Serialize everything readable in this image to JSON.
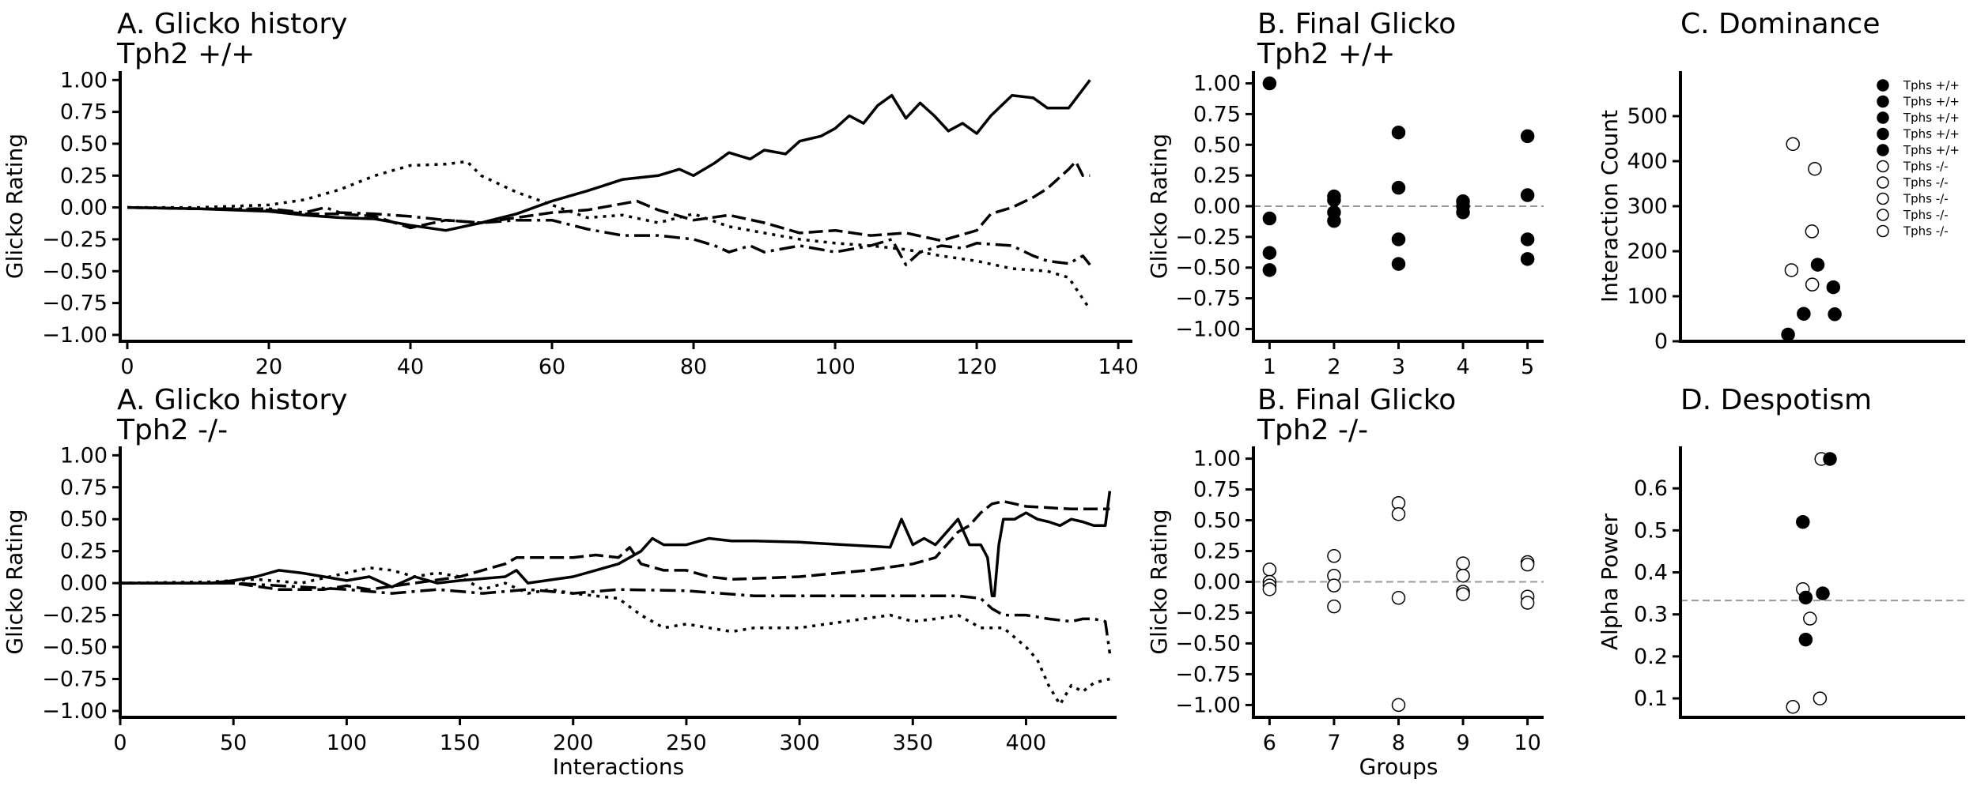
{
  "chart_data": [
    {
      "id": "A1",
      "type": "line",
      "title": "A. Glicko history",
      "subtitle": "Tph2 +/+",
      "xlabel": "",
      "ylabel": "Glicko Rating",
      "xlim": [
        -1,
        142
      ],
      "ylim": [
        -1.05,
        1.07
      ],
      "xticks": [
        0,
        20,
        40,
        60,
        80,
        100,
        120,
        140
      ],
      "yticks": [
        -1.0,
        -0.75,
        -0.5,
        -0.25,
        0.0,
        0.25,
        0.5,
        0.75,
        1.0
      ],
      "series": [
        {
          "style": "solid",
          "x": [
            0,
            10,
            20,
            25,
            30,
            35,
            40,
            45,
            50,
            55,
            60,
            65,
            70,
            75,
            78,
            80,
            83,
            85,
            88,
            90,
            93,
            95,
            98,
            100,
            102,
            104,
            106,
            108,
            110,
            112,
            114,
            116,
            118,
            120,
            122,
            125,
            128,
            130,
            133,
            136
          ],
          "y": [
            0,
            -0.01,
            -0.03,
            -0.06,
            -0.08,
            -0.09,
            -0.14,
            -0.18,
            -0.12,
            -0.05,
            0.05,
            0.13,
            0.22,
            0.25,
            0.3,
            0.25,
            0.35,
            0.43,
            0.38,
            0.45,
            0.42,
            0.52,
            0.56,
            0.62,
            0.72,
            0.66,
            0.8,
            0.88,
            0.7,
            0.82,
            0.72,
            0.6,
            0.66,
            0.58,
            0.72,
            0.88,
            0.86,
            0.78,
            0.78,
            1.0
          ]
        },
        {
          "style": "dashed",
          "x": [
            0,
            10,
            20,
            25,
            30,
            35,
            40,
            45,
            50,
            55,
            60,
            65,
            70,
            72,
            75,
            80,
            85,
            90,
            95,
            100,
            105,
            110,
            115,
            120,
            122,
            125,
            128,
            130,
            133,
            134,
            135,
            136
          ],
          "y": [
            0,
            -0.01,
            -0.02,
            -0.05,
            -0.05,
            -0.07,
            -0.16,
            -0.1,
            -0.12,
            -0.08,
            -0.04,
            -0.02,
            0.03,
            0.05,
            -0.02,
            -0.1,
            -0.06,
            -0.12,
            -0.2,
            -0.18,
            -0.22,
            -0.2,
            -0.26,
            -0.18,
            -0.05,
            0.0,
            0.08,
            0.15,
            0.3,
            0.36,
            0.25,
            0.25
          ]
        },
        {
          "style": "dotted",
          "x": [
            0,
            10,
            20,
            25,
            30,
            35,
            40,
            45,
            48,
            50,
            55,
            60,
            65,
            70,
            75,
            80,
            85,
            90,
            95,
            100,
            105,
            110,
            115,
            120,
            125,
            130,
            133,
            136
          ],
          "y": [
            0,
            0.0,
            0.02,
            0.06,
            0.14,
            0.25,
            0.33,
            0.34,
            0.36,
            0.25,
            0.12,
            0.02,
            -0.08,
            -0.06,
            -0.12,
            -0.05,
            -0.15,
            -0.2,
            -0.25,
            -0.28,
            -0.3,
            -0.33,
            -0.38,
            -0.42,
            -0.48,
            -0.5,
            -0.55,
            -0.8
          ]
        },
        {
          "style": "dashdot",
          "x": [
            0,
            10,
            20,
            25,
            28,
            30,
            35,
            40,
            45,
            50,
            55,
            60,
            65,
            70,
            75,
            80,
            83,
            85,
            88,
            90,
            95,
            100,
            105,
            108,
            110,
            112,
            115,
            118,
            120,
            125,
            128,
            130,
            133,
            135,
            136
          ],
          "y": [
            0,
            -0.01,
            -0.01,
            -0.04,
            0.0,
            -0.04,
            -0.05,
            -0.07,
            -0.1,
            -0.12,
            -0.1,
            -0.1,
            -0.17,
            -0.22,
            -0.22,
            -0.25,
            -0.3,
            -0.35,
            -0.3,
            -0.35,
            -0.3,
            -0.35,
            -0.3,
            -0.25,
            -0.45,
            -0.35,
            -0.3,
            -0.32,
            -0.28,
            -0.3,
            -0.38,
            -0.42,
            -0.44,
            -0.38,
            -0.45
          ]
        }
      ]
    },
    {
      "id": "B1",
      "type": "scatter",
      "title": "B. Final Glicko",
      "subtitle": "Tph2 +/+",
      "xlabel": "",
      "ylabel": "Glicko Rating",
      "xlim": [
        0.75,
        5.25
      ],
      "ylim": [
        -1.1,
        1.1
      ],
      "xticks": [
        1,
        2,
        3,
        4,
        5
      ],
      "yticks": [
        -1.0,
        -0.75,
        -0.5,
        -0.25,
        0.0,
        0.25,
        0.5,
        0.75,
        1.0
      ],
      "hline": 0.0,
      "fill": "#000000",
      "points": [
        [
          1,
          1.0
        ],
        [
          1,
          -0.1
        ],
        [
          1,
          -0.38
        ],
        [
          1,
          -0.52
        ],
        [
          2,
          0.08
        ],
        [
          2,
          0.05
        ],
        [
          2,
          -0.05
        ],
        [
          2,
          -0.12
        ],
        [
          3,
          0.6
        ],
        [
          3,
          0.15
        ],
        [
          3,
          -0.27
        ],
        [
          3,
          -0.47
        ],
        [
          4,
          0.04
        ],
        [
          4,
          0.0
        ],
        [
          4,
          -0.05
        ],
        [
          5,
          0.57
        ],
        [
          5,
          0.09
        ],
        [
          5,
          -0.27
        ],
        [
          5,
          -0.43
        ]
      ]
    },
    {
      "id": "C",
      "type": "scatter",
      "title": "C. Dominance",
      "xlabel": "",
      "ylabel": "Interaction Count",
      "xlim": [
        0,
        1
      ],
      "ylim": [
        0,
        600
      ],
      "yticks": [
        0,
        100,
        200,
        300,
        400,
        500
      ],
      "legend_position": "top-right",
      "legend": [
        {
          "label": "Tphs +/+",
          "filled": true
        },
        {
          "label": "Tphs +/+",
          "filled": true
        },
        {
          "label": "Tphs +/+",
          "filled": true
        },
        {
          "label": "Tphs +/+",
          "filled": true
        },
        {
          "label": "Tphs +/+",
          "filled": true
        },
        {
          "label": "Tphs -/-",
          "filled": false
        },
        {
          "label": "Tphs -/-",
          "filled": false
        },
        {
          "label": "Tphs -/-",
          "filled": false
        },
        {
          "label": "Tphs -/-",
          "filled": false
        },
        {
          "label": "Tphs -/-",
          "filled": false
        }
      ],
      "points": [
        {
          "x": 0.395,
          "y": 438,
          "filled": false
        },
        {
          "x": 0.472,
          "y": 383,
          "filled": false
        },
        {
          "x": 0.462,
          "y": 244,
          "filled": false
        },
        {
          "x": 0.39,
          "y": 158,
          "filled": false
        },
        {
          "x": 0.463,
          "y": 126,
          "filled": false
        },
        {
          "x": 0.482,
          "y": 170,
          "filled": true
        },
        {
          "x": 0.537,
          "y": 120,
          "filled": true
        },
        {
          "x": 0.433,
          "y": 61,
          "filled": true
        },
        {
          "x": 0.542,
          "y": 60,
          "filled": true
        },
        {
          "x": 0.378,
          "y": 15,
          "filled": true
        }
      ]
    },
    {
      "id": "A2",
      "type": "line",
      "title": "A. Glicko history",
      "subtitle": "Tph2 -/-",
      "xlabel": "Interactions",
      "ylabel": "Glicko Rating",
      "xlim": [
        0,
        440
      ],
      "ylim": [
        -1.05,
        1.07
      ],
      "xticks": [
        0,
        50,
        100,
        150,
        200,
        250,
        300,
        350,
        400
      ],
      "yticks": [
        -1.0,
        -0.75,
        -0.5,
        -0.25,
        0.0,
        0.25,
        0.5,
        0.75,
        1.0
      ],
      "series": [
        {
          "style": "solid",
          "x": [
            0,
            40,
            50,
            60,
            70,
            80,
            90,
            100,
            110,
            120,
            130,
            140,
            150,
            170,
            175,
            180,
            200,
            210,
            220,
            230,
            235,
            240,
            250,
            260,
            270,
            280,
            300,
            320,
            340,
            345,
            350,
            355,
            360,
            370,
            375,
            380,
            383,
            385,
            386,
            388,
            390,
            395,
            400,
            405,
            410,
            415,
            420,
            425,
            430,
            435,
            437
          ],
          "y": [
            0,
            0.0,
            0.02,
            0.05,
            0.1,
            0.08,
            0.05,
            0.02,
            0.05,
            -0.03,
            0.05,
            0.0,
            0.02,
            0.05,
            0.1,
            0.0,
            0.05,
            0.1,
            0.15,
            0.25,
            0.35,
            0.3,
            0.3,
            0.35,
            0.33,
            0.33,
            0.32,
            0.3,
            0.28,
            0.5,
            0.3,
            0.35,
            0.3,
            0.5,
            0.3,
            0.3,
            0.2,
            -0.1,
            -0.1,
            0.3,
            0.5,
            0.5,
            0.55,
            0.5,
            0.48,
            0.45,
            0.5,
            0.48,
            0.45,
            0.45,
            0.72
          ]
        },
        {
          "style": "dashed",
          "x": [
            0,
            50,
            70,
            90,
            100,
            110,
            130,
            150,
            160,
            170,
            175,
            180,
            200,
            210,
            220,
            225,
            230,
            240,
            250,
            260,
            270,
            300,
            330,
            350,
            360,
            370,
            375,
            380,
            385,
            390,
            400,
            420,
            437
          ],
          "y": [
            0,
            0.0,
            -0.05,
            -0.05,
            -0.02,
            -0.05,
            0.0,
            0.05,
            0.1,
            0.15,
            0.2,
            0.2,
            0.2,
            0.22,
            0.2,
            0.28,
            0.15,
            0.1,
            0.1,
            0.05,
            0.03,
            0.05,
            0.1,
            0.15,
            0.2,
            0.4,
            0.45,
            0.55,
            0.62,
            0.64,
            0.6,
            0.58,
            0.58
          ]
        },
        {
          "style": "dotted",
          "x": [
            0,
            40,
            60,
            80,
            100,
            110,
            120,
            130,
            140,
            150,
            160,
            170,
            180,
            190,
            200,
            210,
            220,
            230,
            240,
            250,
            260,
            270,
            280,
            300,
            320,
            340,
            350,
            360,
            370,
            380,
            390,
            400,
            405,
            410,
            415,
            420,
            425,
            430,
            437
          ],
          "y": [
            0,
            0.01,
            0.03,
            0.0,
            0.08,
            0.12,
            0.1,
            0.05,
            0.08,
            0.05,
            -0.05,
            0.0,
            -0.08,
            -0.05,
            -0.08,
            -0.1,
            -0.12,
            -0.25,
            -0.35,
            -0.32,
            -0.35,
            -0.38,
            -0.35,
            -0.35,
            -0.3,
            -0.25,
            -0.3,
            -0.28,
            -0.25,
            -0.35,
            -0.35,
            -0.5,
            -0.6,
            -0.8,
            -0.95,
            -0.8,
            -0.85,
            -0.78,
            -0.75
          ]
        },
        {
          "style": "dashdot",
          "x": [
            0,
            50,
            80,
            100,
            120,
            140,
            160,
            180,
            200,
            220,
            250,
            280,
            300,
            320,
            350,
            370,
            380,
            385,
            390,
            400,
            410,
            420,
            425,
            430,
            435,
            437
          ],
          "y": [
            0,
            0.0,
            -0.03,
            -0.05,
            -0.08,
            -0.05,
            -0.08,
            -0.05,
            -0.08,
            -0.05,
            -0.06,
            -0.1,
            -0.1,
            -0.1,
            -0.1,
            -0.1,
            -0.12,
            -0.2,
            -0.25,
            -0.25,
            -0.28,
            -0.3,
            -0.28,
            -0.28,
            -0.3,
            -0.55
          ]
        }
      ]
    },
    {
      "id": "B2",
      "type": "scatter",
      "title": "B. Final Glicko",
      "subtitle": "Tph2 -/-",
      "xlabel": "Groups",
      "ylabel": "Glicko Rating",
      "xlim": [
        5.75,
        10.25
      ],
      "ylim": [
        -1.1,
        1.1
      ],
      "xticks": [
        6,
        7,
        8,
        9,
        10
      ],
      "yticks": [
        -1.0,
        -0.75,
        -0.5,
        -0.25,
        0.0,
        0.25,
        0.5,
        0.75,
        1.0
      ],
      "hline": 0.0,
      "fill": "none",
      "points": [
        [
          6,
          0.1
        ],
        [
          6,
          0.0
        ],
        [
          6,
          -0.03
        ],
        [
          6,
          -0.06
        ],
        [
          7,
          0.21
        ],
        [
          7,
          0.05
        ],
        [
          7,
          -0.03
        ],
        [
          7,
          -0.2
        ],
        [
          8,
          0.64
        ],
        [
          8,
          0.55
        ],
        [
          8,
          -0.13
        ],
        [
          8,
          -1.0
        ],
        [
          9,
          0.15
        ],
        [
          9,
          0.05
        ],
        [
          9,
          -0.08
        ],
        [
          9,
          -0.1
        ],
        [
          10,
          0.16
        ],
        [
          10,
          0.14
        ],
        [
          10,
          -0.12
        ],
        [
          10,
          -0.17
        ]
      ]
    },
    {
      "id": "D",
      "type": "scatter",
      "title": "D. Despotism",
      "xlabel": "",
      "ylabel": "Alpha Power",
      "xlim": [
        0,
        1
      ],
      "ylim": [
        0.055,
        0.7
      ],
      "yticks": [
        0.1,
        0.2,
        0.3,
        0.4,
        0.5,
        0.6
      ],
      "hline": 0.333,
      "points": [
        {
          "x": 0.495,
          "y": 0.67,
          "filled": false
        },
        {
          "x": 0.43,
          "y": 0.36,
          "filled": false
        },
        {
          "x": 0.455,
          "y": 0.29,
          "filled": false
        },
        {
          "x": 0.49,
          "y": 0.1,
          "filled": false
        },
        {
          "x": 0.395,
          "y": 0.08,
          "filled": false
        },
        {
          "x": 0.525,
          "y": 0.67,
          "filled": true
        },
        {
          "x": 0.43,
          "y": 0.52,
          "filled": true
        },
        {
          "x": 0.5,
          "y": 0.35,
          "filled": true
        },
        {
          "x": 0.44,
          "y": 0.34,
          "filled": true
        },
        {
          "x": 0.44,
          "y": 0.24,
          "filled": true
        }
      ]
    }
  ]
}
